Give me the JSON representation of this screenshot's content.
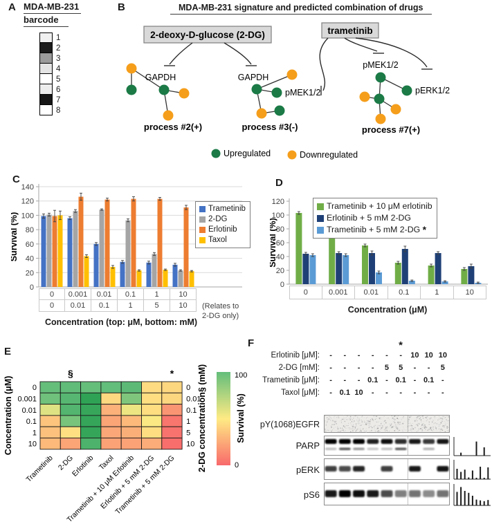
{
  "panel_letters": {
    "A": "A",
    "B": "B",
    "C": "C",
    "D": "D",
    "E": "E",
    "F": "F"
  },
  "panelA": {
    "title_line1": "MDA-MB-231",
    "title_line2": "barcode",
    "barcode": [
      {
        "index": "1",
        "shade": "#f0f0f0"
      },
      {
        "index": "2",
        "shade": "#1c1c1c"
      },
      {
        "index": "3",
        "shade": "#9b9b9b"
      },
      {
        "index": "4",
        "shade": "#e4e4e4"
      },
      {
        "index": "5",
        "shade": "#ffffff"
      },
      {
        "index": "6",
        "shade": "#ededed"
      },
      {
        "index": "7",
        "shade": "#161616"
      },
      {
        "index": "8",
        "shade": "#ffffff"
      }
    ]
  },
  "panelB": {
    "title": "MDA-MB-231 signature and predicted combination of drugs",
    "drug_box_2dg": "2-deoxy-D-glucose (2-DG)",
    "drug_box_trametinib": "trametinib",
    "gapdh_label_1": "GAPDH",
    "gapdh_label_2": "GAPDH",
    "pmek_label_process3": "pMEK1/2",
    "pmek_label_process7": "pMEK1/2",
    "perk_label_process7": "pERK1/2",
    "process2_label": "process #2(+)",
    "process3_label": "process #3(-)",
    "process7_label": "process #7(+)",
    "legend_up": "Upregulated",
    "legend_down": "Downregulated",
    "upregulated_color": "#1B7A46",
    "downregulated_color": "#F59E1B"
  },
  "chart_data": [
    {
      "panel": "C",
      "type": "bar",
      "ylabel": "Survival (%)",
      "ylim": [
        0,
        140
      ],
      "ytick_step": 20,
      "grid": true,
      "categories_top_uM": [
        "0",
        "0.001",
        "0.01",
        "0.1",
        "1",
        "10"
      ],
      "categories_bottom_mM": [
        "0",
        "0.01",
        "0.1",
        "1",
        "5",
        "10"
      ],
      "xlabel": "Concentration (top: μM, bottom: mM)",
      "note_line1": "(Relates to",
      "note_line2": "2-DG only)",
      "legend_position": "right-overlay",
      "series": [
        {
          "name": "Trametinib",
          "color": "#4472C4",
          "values": [
            99,
            96,
            60,
            35,
            34,
            31
          ],
          "errors": [
            3,
            2,
            2,
            2,
            2,
            2
          ]
        },
        {
          "name": "2-DG",
          "color": "#A5A5A5",
          "values": [
            101,
            106,
            108,
            93,
            46,
            23
          ],
          "errors": [
            2,
            2,
            1,
            2,
            2,
            1
          ]
        },
        {
          "name": "Erlotinib",
          "color": "#ED7D31",
          "values": [
            99,
            126,
            122,
            123,
            123,
            111
          ],
          "errors": [
            8,
            5,
            2,
            3,
            2,
            3
          ]
        },
        {
          "name": "Taxol",
          "color": "#FFC000",
          "values": [
            100,
            43,
            28,
            23,
            24,
            22
          ],
          "errors": [
            6,
            2,
            2,
            1,
            1,
            1
          ]
        }
      ]
    },
    {
      "panel": "D",
      "type": "bar",
      "ylabel": "Survival (%)",
      "ylim": [
        0,
        120
      ],
      "ytick_step": 20,
      "grid": false,
      "categories": [
        "0",
        "0.001",
        "0.01",
        "0.1",
        "1",
        "10"
      ],
      "xlabel": "Concentration (μM)",
      "legend_position": "top-right-overlay",
      "series": [
        {
          "name": "Trametinib + 10 μM erlotinib",
          "color": "#70AD47",
          "values": [
            103,
            91,
            56,
            31,
            27,
            22
          ],
          "errors": [
            2,
            4,
            2,
            2,
            2,
            2
          ],
          "star": ""
        },
        {
          "name": "Erlotinib + 5 mM 2-DG",
          "color": "#1F4077",
          "values": [
            44,
            45,
            45,
            51,
            45,
            26
          ],
          "errors": [
            2,
            2,
            3,
            4,
            2,
            3
          ],
          "star": ""
        },
        {
          "name": "Trametinib + 5 mM 2-DG",
          "color": "#5B9BD5",
          "values": [
            42,
            42,
            17,
            5,
            4,
            2
          ],
          "errors": [
            2,
            2,
            2,
            1,
            1,
            1
          ],
          "star": "*"
        }
      ]
    },
    {
      "panel": "E",
      "type": "heatmap",
      "left_axis_label": "Concentration (μM)",
      "rows_left": [
        "0",
        "0.001",
        "0.01",
        "0.1",
        "1",
        "10"
      ],
      "right_axis_label": "2-DG concentration§ (mM)",
      "rows_right": [
        "0",
        "0.01",
        "0.1",
        "1",
        "5",
        "10"
      ],
      "columns": [
        "Trametinib",
        "2-DG",
        "Erlotinib",
        "Taxol",
        "Trametinib + 10 μM Erlotinib",
        "Erlotinib + 5 mM 2-DG",
        "Trametinib + 5 mM 2-DG"
      ],
      "col_markers": {
        "1": "§",
        "6": "*"
      },
      "values": [
        [
          99,
          101,
          99,
          100,
          103,
          44,
          42
        ],
        [
          96,
          106,
          126,
          43,
          91,
          45,
          42
        ],
        [
          60,
          108,
          122,
          28,
          56,
          45,
          17
        ],
        [
          35,
          93,
          123,
          23,
          31,
          51,
          5
        ],
        [
          34,
          46,
          123,
          24,
          27,
          45,
          4
        ],
        [
          31,
          23,
          111,
          22,
          22,
          26,
          2
        ]
      ],
      "colorbar": {
        "label": "Survival (%)",
        "max_label": "100",
        "min_label": "0",
        "color_high": "#63BE7B",
        "color_mid": "#FFEB84",
        "color_low": "#F8696B"
      }
    },
    {
      "panel": "F",
      "type": "bar",
      "name": "PARP quantification (lanes 1-9)",
      "values": [
        0,
        18,
        0,
        0,
        0,
        85,
        0,
        50,
        0
      ]
    },
    {
      "panel": "F",
      "type": "bar",
      "name": "pERK quantification (lanes 1-9)",
      "values": [
        60,
        42,
        55,
        10,
        50,
        8,
        72,
        8,
        68
      ]
    },
    {
      "panel": "F",
      "type": "bar",
      "name": "pS6 quantification (lanes 1-9)",
      "values": [
        70,
        95,
        75,
        65,
        50,
        30,
        26,
        22,
        28
      ]
    }
  ],
  "panelF": {
    "star": "*",
    "star_lane": 6,
    "dose_rows": [
      {
        "label": "Erlotinib [μM]:",
        "values": [
          "-",
          "-",
          "-",
          "-",
          "-",
          "-",
          "10",
          "10",
          "10"
        ]
      },
      {
        "label": "2-DG [mM]:",
        "values": [
          "-",
          "-",
          "-",
          "-",
          "5",
          "5",
          "-",
          "-",
          "5"
        ]
      },
      {
        "label": "Trametinib [μM]:",
        "values": [
          "-",
          "-",
          "-",
          "0.1",
          "-",
          "0.1",
          "-",
          "0.1",
          "-"
        ]
      },
      {
        "label": "Taxol [μM]:",
        "values": [
          "-",
          "0.1",
          "10",
          "-",
          "-",
          "-",
          "-",
          "-",
          "-"
        ]
      }
    ],
    "blots": [
      {
        "key": "egfr",
        "label": "pY(1068)EGFR",
        "style": "noise",
        "bands": []
      },
      {
        "key": "parp",
        "label": "PARP",
        "style": "bands",
        "bands": [
          {
            "y": 5,
            "h": 7,
            "intensities": [
              1,
              1,
              1,
              0.88,
              0.95,
              0.82,
              0.9,
              0.78,
              0.92
            ]
          },
          {
            "y": 17.5,
            "h": 3.5,
            "intensities": [
              0.25,
              0.65,
              0.4,
              0.22,
              0.25,
              0.65,
              0,
              0.3,
              0
            ]
          }
        ]
      },
      {
        "key": "perk",
        "label": "pERK",
        "style": "bands",
        "bands": [
          {
            "y": 11,
            "h": 8,
            "intensities": [
              0.75,
              0.7,
              0.85,
              0,
              0.75,
              0,
              0.9,
              0,
              0.92
            ]
          }
        ]
      },
      {
        "key": "ps6",
        "label": "pS6",
        "style": "bands",
        "bands": [
          {
            "y": 11,
            "h": 10,
            "intensities": [
              0.9,
              1,
              0.95,
              0.9,
              0.7,
              0.5,
              0.55,
              0.45,
              0.55
            ]
          }
        ]
      }
    ]
  }
}
